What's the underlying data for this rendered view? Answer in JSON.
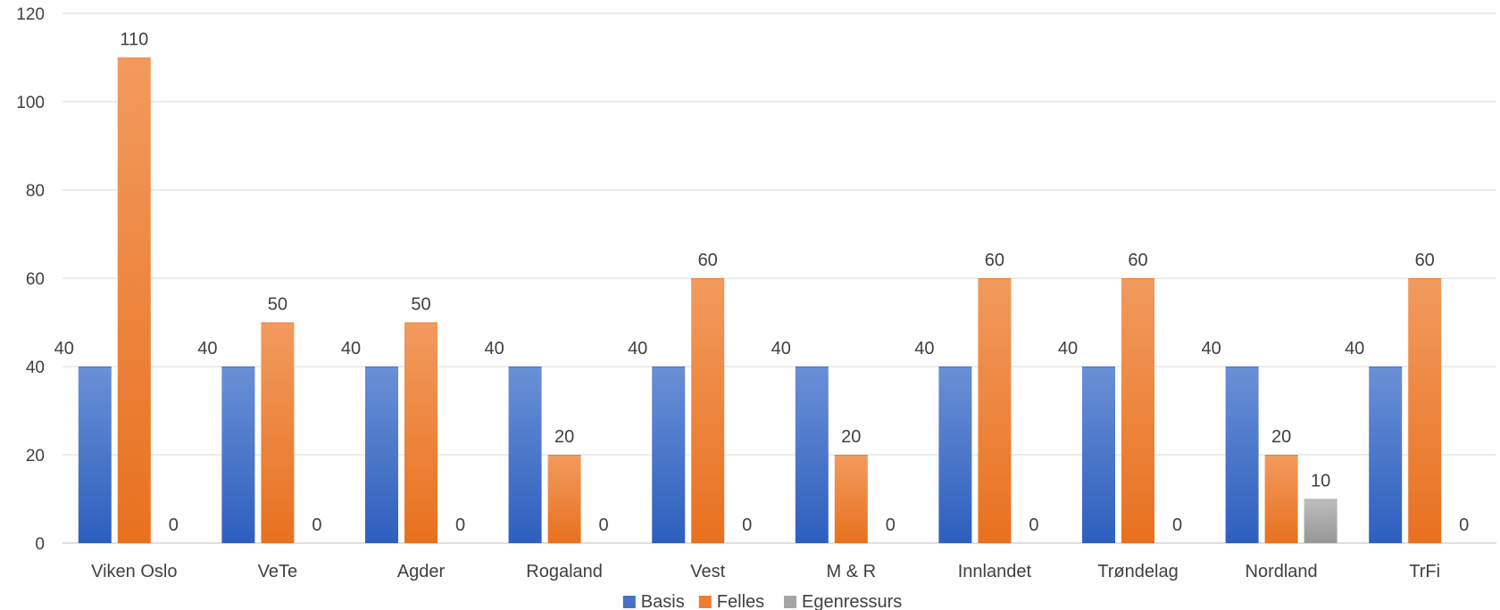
{
  "chart_data": {
    "type": "bar",
    "categories": [
      "Viken Oslo",
      "VeTe",
      "Agder",
      "Rogaland",
      "Vest",
      "M & R",
      "Innlandet",
      "Trøndelag",
      "Nordland",
      "TrFi"
    ],
    "series": [
      {
        "name": "Basis",
        "values": [
          40,
          40,
          40,
          40,
          40,
          40,
          40,
          40,
          40,
          40
        ],
        "color": "#4472C4"
      },
      {
        "name": "Felles",
        "values": [
          110,
          50,
          50,
          20,
          60,
          20,
          60,
          60,
          20,
          60
        ],
        "color": "#ED7D31"
      },
      {
        "name": "Egenressurs",
        "values": [
          0,
          0,
          0,
          0,
          0,
          0,
          0,
          0,
          10,
          0
        ],
        "color": "#A5A5A5"
      }
    ],
    "yticks": [
      0,
      20,
      40,
      60,
      80,
      100,
      120
    ],
    "ylim": [
      0,
      120
    ],
    "grid": true,
    "legend_position": "bottom",
    "data_labels": true
  }
}
